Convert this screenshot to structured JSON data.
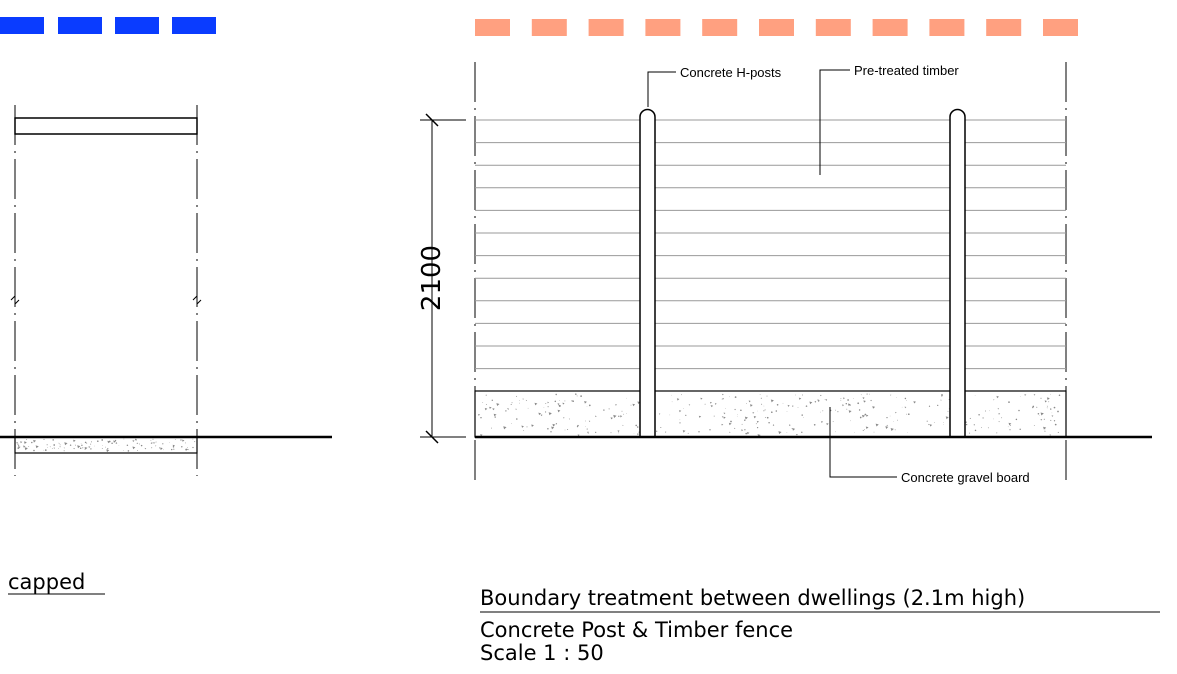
{
  "dimension": {
    "height_label": "2100"
  },
  "labels": {
    "posts": "Concrete H-posts",
    "timber": "Pre-treated timber",
    "gravel_board": "Concrete gravel board"
  },
  "left_caption": "capped",
  "title_block": {
    "title": "Boundary treatment between dwellings (2.1m high)",
    "subtitle": "Concrete Post & Timber fence",
    "scale": "Scale 1 : 50"
  },
  "colors": {
    "left_strip": "#0a3cff",
    "right_strip": "#ffa080",
    "line": "#000000",
    "board_line": "#999999"
  }
}
